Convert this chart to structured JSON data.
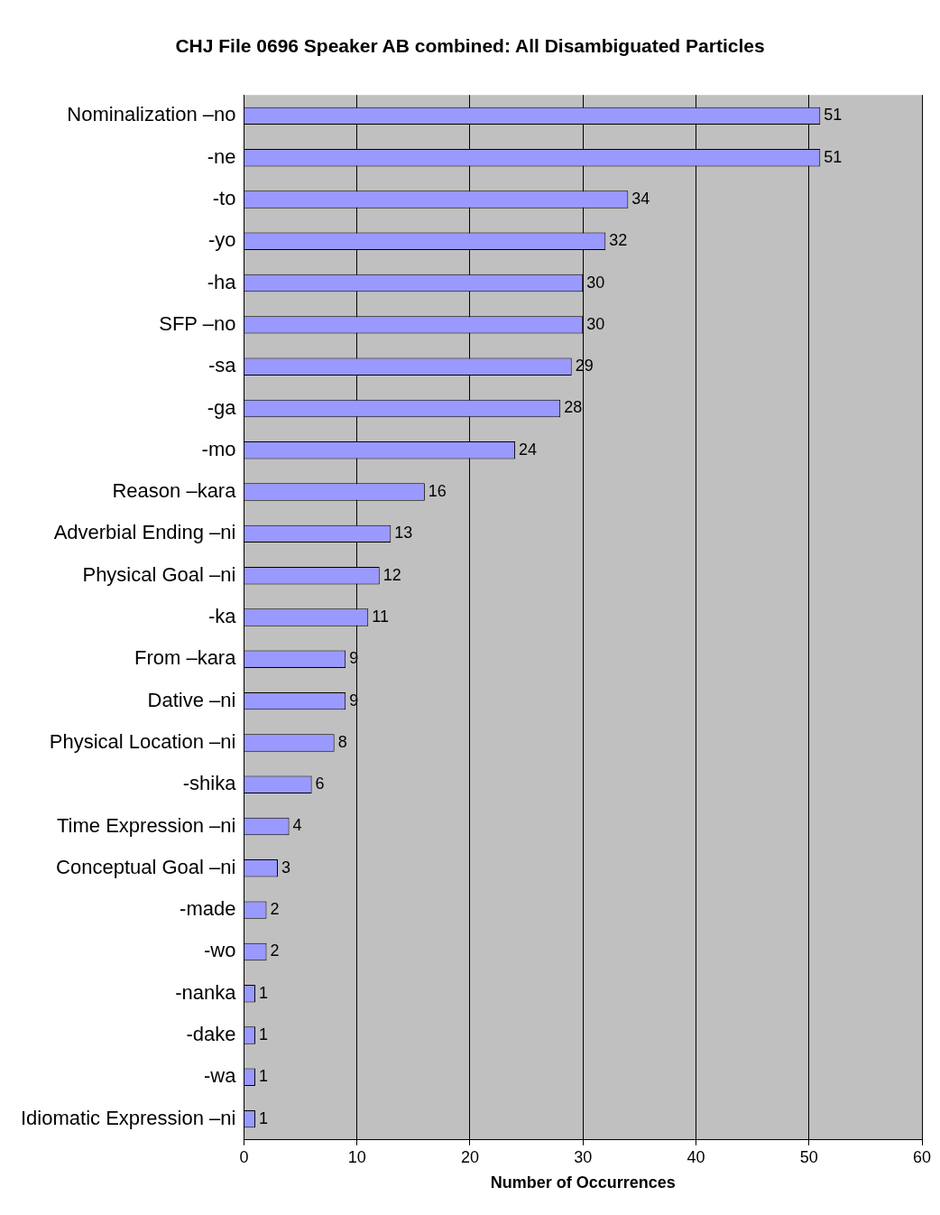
{
  "chart_data": {
    "type": "bar",
    "orientation": "horizontal",
    "title": "CHJ File 0696 Speaker AB combined: All Disambiguated Particles",
    "xlabel": "Number of Occurrences",
    "categories": [
      "Nominalization –no",
      "-ne",
      "-to",
      "-yo",
      "-ha",
      "SFP –no",
      "-sa",
      "-ga",
      "-mo",
      "Reason –kara",
      "Adverbial Ending –ni",
      "Physical Goal –ni",
      "-ka",
      "From –kara",
      "Dative –ni",
      "Physical Location –ni",
      "-shika",
      "Time Expression –ni",
      "Conceptual Goal –ni",
      "-made",
      "-wo",
      "-nanka",
      "-dake",
      "-wa",
      "Idiomatic Expression –ni"
    ],
    "values": [
      51,
      51,
      34,
      32,
      30,
      30,
      29,
      28,
      24,
      16,
      13,
      12,
      11,
      9,
      9,
      8,
      6,
      4,
      3,
      2,
      2,
      1,
      1,
      1,
      1
    ],
    "color": "#9999ff",
    "xlim": [
      0,
      60
    ],
    "xticks": [
      0,
      10,
      20,
      30,
      40,
      50,
      60
    ],
    "grid": "x",
    "data_labels": true
  }
}
